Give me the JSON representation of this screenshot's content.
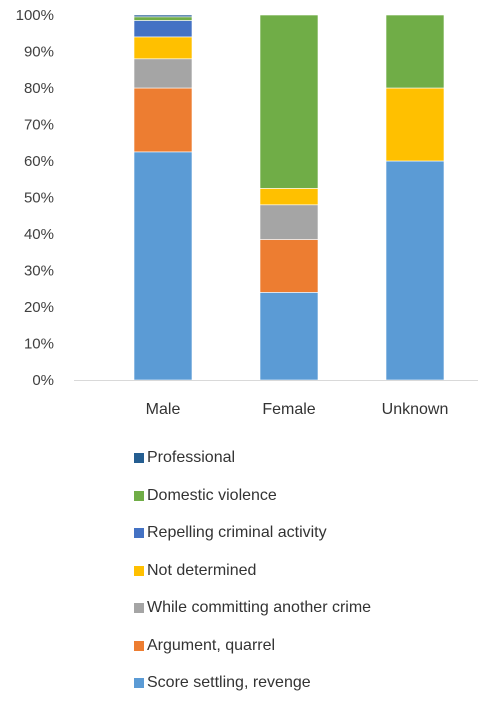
{
  "chart_data": {
    "type": "bar",
    "stacked": true,
    "percent": true,
    "categories": [
      "Male",
      "Female",
      "Unknown"
    ],
    "ylim": [
      0,
      100
    ],
    "y_ticks": [
      "0%",
      "10%",
      "20%",
      "30%",
      "40%",
      "50%",
      "60%",
      "70%",
      "80%",
      "90%",
      "100%"
    ],
    "grid": false,
    "legend_position": "bottom",
    "series": [
      {
        "name": "Score settling, revenge",
        "color": "#5b9bd5",
        "values": [
          62.5,
          24,
          60
        ]
      },
      {
        "name": "Argument, quarrel",
        "color": "#ed7d31",
        "values": [
          17.5,
          14.5,
          0
        ]
      },
      {
        "name": "While committing another crime",
        "color": "#a5a5a5",
        "values": [
          8,
          9.5,
          0
        ]
      },
      {
        "name": "Not determined",
        "color": "#ffc000",
        "values": [
          6,
          4.5,
          20
        ]
      },
      {
        "name": "Repelling criminal activity",
        "color": "#4472c4",
        "values": [
          4.5,
          0,
          0
        ]
      },
      {
        "name": "Domestic violence",
        "color": "#70ad47",
        "values": [
          1,
          47.5,
          20
        ]
      },
      {
        "name": "Professional",
        "color": "#255e91",
        "values": [
          0.5,
          0,
          0
        ]
      }
    ]
  }
}
